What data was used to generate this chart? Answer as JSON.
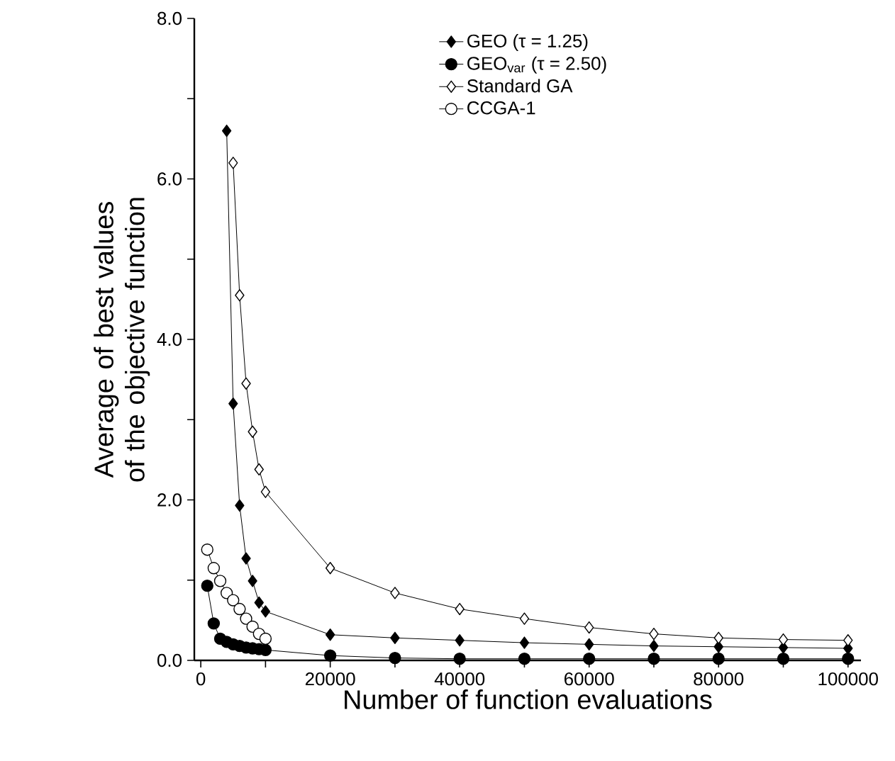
{
  "chart_data": {
    "type": "line",
    "xlabel": "Number of function evaluations",
    "ylabel": "Average of best values of the objective function",
    "xlim": [
      -1000,
      102000
    ],
    "ylim": [
      0,
      8
    ],
    "xticks": [
      0,
      {
        "value": 10000,
        "label": null
      },
      20000,
      {
        "value": 30000,
        "label": null
      },
      40000,
      {
        "value": 50000,
        "label": null
      },
      60000,
      {
        "value": 70000,
        "label": null
      },
      80000,
      {
        "value": 90000,
        "label": null
      },
      100000
    ],
    "yticks": [
      {
        "value": 0,
        "label": "0.0"
      },
      {
        "value": 1,
        "label": null
      },
      {
        "value": 2,
        "label": "2.0"
      },
      {
        "value": 3,
        "label": null
      },
      {
        "value": 4,
        "label": "4.0"
      },
      {
        "value": 5,
        "label": null
      },
      {
        "value": 6,
        "label": "6.0"
      },
      {
        "value": 7,
        "label": null
      },
      {
        "value": 8,
        "label": "8.0"
      }
    ],
    "grid": false,
    "legend": "top",
    "line_style": "solid",
    "series": [
      {
        "name": "GEO (τ = 1.25)",
        "color": "#000000",
        "marker": "diamond",
        "x": [
          4000,
          5000,
          6000,
          7000,
          8000,
          9000,
          10000,
          20000,
          30000,
          40000,
          50000,
          60000,
          70000,
          80000,
          90000,
          100000
        ],
        "values": [
          6.6,
          3.2,
          1.93,
          1.27,
          0.99,
          0.72,
          0.61,
          0.32,
          0.28,
          0.25,
          0.22,
          0.2,
          0.18,
          0.17,
          0.16,
          0.15
        ]
      },
      {
        "name": "GEO$_{var}$ (τ = 2.50)",
        "color": "#000000",
        "marker": "circle",
        "x": [
          1000,
          2000,
          3000,
          4000,
          5000,
          6000,
          7000,
          8000,
          9000,
          10000,
          20000,
          30000,
          40000,
          50000,
          60000,
          70000,
          80000,
          90000,
          100000
        ],
        "values": [
          0.93,
          0.46,
          0.27,
          0.23,
          0.2,
          0.18,
          0.16,
          0.15,
          0.14,
          0.13,
          0.06,
          0.03,
          0.02,
          0.02,
          0.02,
          0.02,
          0.02,
          0.02,
          0.02
        ]
      },
      {
        "name": "Standard GA",
        "color": "#ffffff",
        "marker": "diamond",
        "x": [
          5000,
          6000,
          7000,
          8000,
          9000,
          10000,
          20000,
          30000,
          40000,
          50000,
          60000,
          70000,
          80000,
          90000,
          100000
        ],
        "values": [
          6.2,
          4.55,
          3.45,
          2.85,
          2.38,
          2.1,
          1.15,
          0.84,
          0.64,
          0.52,
          0.41,
          0.33,
          0.28,
          0.26,
          0.25
        ]
      },
      {
        "name": "CCGA-1",
        "color": "#ffffff",
        "marker": "circle",
        "x": [
          1000,
          2000,
          3000,
          4000,
          5000,
          6000,
          7000,
          8000,
          9000,
          10000
        ],
        "values": [
          1.38,
          1.15,
          0.99,
          0.84,
          0.75,
          0.64,
          0.52,
          0.42,
          0.33,
          0.27
        ]
      }
    ]
  }
}
